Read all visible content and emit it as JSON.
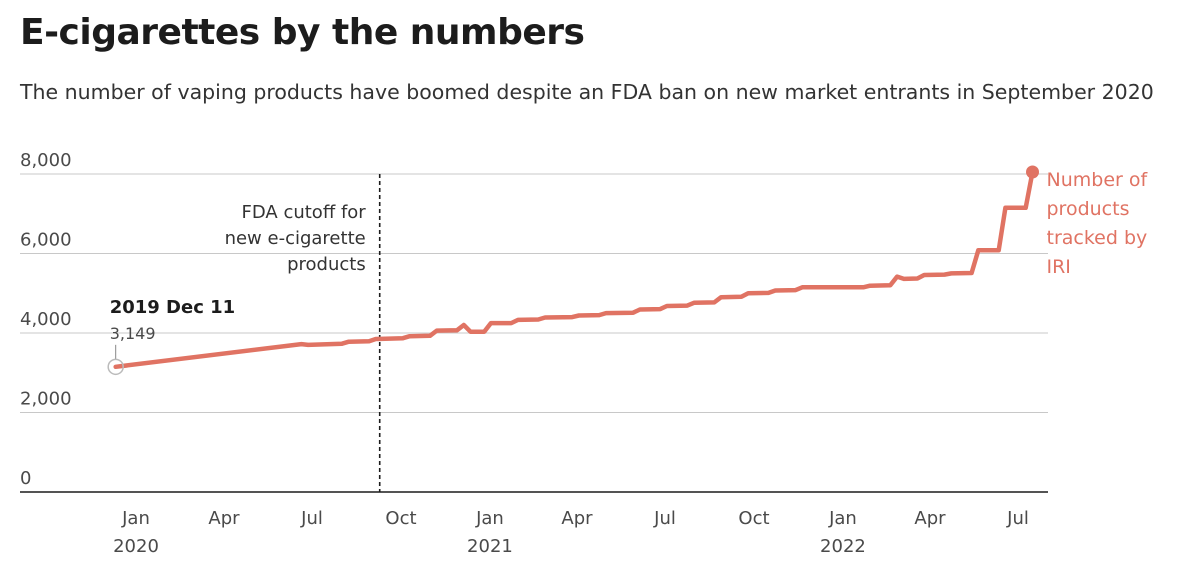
{
  "header": {
    "title": "E-cigarettes by the numbers",
    "subtitle": "The number of vaping products have boomed despite an FDA ban on new market entrants in September 2020"
  },
  "colors": {
    "series": "#e07363",
    "grid": "#c8c8c8",
    "axis": "#1c1c1c",
    "start_marker": "#bbbbbb"
  },
  "chart_data": {
    "type": "line",
    "title": "E-cigarettes by the numbers",
    "subtitle": "The number of vaping products have boomed despite an FDA ban on new market entrants in September 2020",
    "xlabel": "",
    "ylabel": "",
    "ylim": [
      0,
      8000
    ],
    "xlim": [
      "2019-11-25",
      "2022-08-20"
    ],
    "grid": true,
    "y_ticks": [
      {
        "value": 0,
        "label": "0"
      },
      {
        "value": 2000,
        "label": "2,000"
      },
      {
        "value": 4000,
        "label": "4,000"
      },
      {
        "value": 6000,
        "label": "6,000"
      },
      {
        "value": 8000,
        "label": "8,000"
      }
    ],
    "x_ticks": [
      {
        "date": "2020-01-01",
        "label": "Jan",
        "year": "2020"
      },
      {
        "date": "2020-04-01",
        "label": "Apr"
      },
      {
        "date": "2020-07-01",
        "label": "Jul"
      },
      {
        "date": "2020-10-01",
        "label": "Oct"
      },
      {
        "date": "2021-01-01",
        "label": "Jan",
        "year": "2021"
      },
      {
        "date": "2021-04-01",
        "label": "Apr"
      },
      {
        "date": "2021-07-01",
        "label": "Jul"
      },
      {
        "date": "2021-10-01",
        "label": "Oct"
      },
      {
        "date": "2022-01-01",
        "label": "Jan",
        "year": "2022"
      },
      {
        "date": "2022-04-01",
        "label": "Apr"
      },
      {
        "date": "2022-07-01",
        "label": "Jul"
      }
    ],
    "series": [
      {
        "name": "Number of products tracked by IRI",
        "label_lines": [
          "Number of",
          "products",
          "tracked by",
          "IRI"
        ],
        "points": [
          {
            "date": "2019-12-11",
            "value": 3149
          },
          {
            "date": "2020-06-20",
            "value": 3720
          },
          {
            "date": "2020-06-27",
            "value": 3700
          },
          {
            "date": "2020-08-01",
            "value": 3730
          },
          {
            "date": "2020-08-08",
            "value": 3780
          },
          {
            "date": "2020-08-29",
            "value": 3790
          },
          {
            "date": "2020-09-05",
            "value": 3850
          },
          {
            "date": "2020-10-03",
            "value": 3870
          },
          {
            "date": "2020-10-10",
            "value": 3920
          },
          {
            "date": "2020-10-31",
            "value": 3930
          },
          {
            "date": "2020-11-07",
            "value": 4060
          },
          {
            "date": "2020-11-28",
            "value": 4070
          },
          {
            "date": "2020-12-05",
            "value": 4200
          },
          {
            "date": "2020-12-12",
            "value": 4030
          },
          {
            "date": "2020-12-26",
            "value": 4030
          },
          {
            "date": "2021-01-02",
            "value": 4250
          },
          {
            "date": "2021-01-23",
            "value": 4250
          },
          {
            "date": "2021-01-30",
            "value": 4330
          },
          {
            "date": "2021-02-20",
            "value": 4340
          },
          {
            "date": "2021-02-27",
            "value": 4390
          },
          {
            "date": "2021-03-27",
            "value": 4400
          },
          {
            "date": "2021-04-03",
            "value": 4440
          },
          {
            "date": "2021-04-24",
            "value": 4450
          },
          {
            "date": "2021-05-01",
            "value": 4500
          },
          {
            "date": "2021-05-29",
            "value": 4510
          },
          {
            "date": "2021-06-05",
            "value": 4590
          },
          {
            "date": "2021-06-26",
            "value": 4600
          },
          {
            "date": "2021-07-03",
            "value": 4680
          },
          {
            "date": "2021-07-24",
            "value": 4690
          },
          {
            "date": "2021-07-31",
            "value": 4760
          },
          {
            "date": "2021-08-21",
            "value": 4770
          },
          {
            "date": "2021-08-28",
            "value": 4900
          },
          {
            "date": "2021-09-18",
            "value": 4910
          },
          {
            "date": "2021-09-25",
            "value": 5000
          },
          {
            "date": "2021-10-16",
            "value": 5010
          },
          {
            "date": "2021-10-23",
            "value": 5070
          },
          {
            "date": "2021-11-13",
            "value": 5080
          },
          {
            "date": "2021-11-20",
            "value": 5150
          },
          {
            "date": "2022-01-22",
            "value": 5150
          },
          {
            "date": "2022-01-29",
            "value": 5190
          },
          {
            "date": "2022-02-19",
            "value": 5200
          },
          {
            "date": "2022-02-26",
            "value": 5420
          },
          {
            "date": "2022-03-05",
            "value": 5360
          },
          {
            "date": "2022-03-19",
            "value": 5370
          },
          {
            "date": "2022-03-26",
            "value": 5460
          },
          {
            "date": "2022-04-16",
            "value": 5470
          },
          {
            "date": "2022-04-23",
            "value": 5500
          },
          {
            "date": "2022-05-14",
            "value": 5510
          },
          {
            "date": "2022-05-21",
            "value": 6080
          },
          {
            "date": "2022-06-11",
            "value": 6080
          },
          {
            "date": "2022-06-18",
            "value": 7150
          },
          {
            "date": "2022-07-09",
            "value": 7150
          },
          {
            "date": "2022-07-16",
            "value": 8050
          }
        ]
      }
    ],
    "annotations": {
      "cutoff": {
        "date": "2020-09-09",
        "lines": [
          "FDA cutoff for",
          "new e-cigarette",
          "products"
        ]
      },
      "first_point": {
        "date_label": "2019 Dec 11",
        "value_label": "3,149"
      }
    }
  }
}
